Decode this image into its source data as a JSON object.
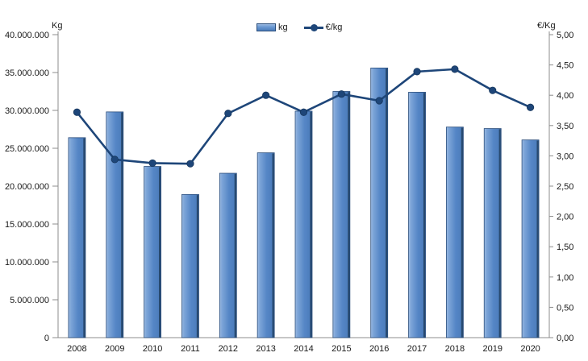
{
  "chart_data": {
    "type": "combo-bar-line",
    "title": "",
    "categories": [
      "2008",
      "2009",
      "2010",
      "2011",
      "2012",
      "2013",
      "2014",
      "2015",
      "2016",
      "2017",
      "2018",
      "2019",
      "2020"
    ],
    "series": [
      {
        "name": "kg",
        "type": "bar",
        "axis": "left",
        "values": [
          26400000,
          29800000,
          22600000,
          18900000,
          21700000,
          24400000,
          29900000,
          32500000,
          35600000,
          32400000,
          27800000,
          27600000,
          26100000
        ]
      },
      {
        "name": "€/kg",
        "type": "line",
        "axis": "right",
        "values": [
          3.72,
          2.94,
          2.88,
          2.87,
          3.7,
          4.0,
          3.72,
          4.02,
          3.91,
          4.39,
          4.43,
          4.08,
          3.8
        ]
      }
    ],
    "left_axis": {
      "title": "Kg",
      "min": 0,
      "max": 40000000,
      "step": 5000000,
      "tick_labels": [
        "0",
        "5.000.000",
        "10.000.000",
        "15.000.000",
        "20.000.000",
        "25.000.000",
        "30.000.000",
        "35.000.000",
        "40.000.000"
      ]
    },
    "right_axis": {
      "title": "€/Kg",
      "min": 0,
      "max": 5,
      "step": 0.5,
      "tick_labels": [
        "0,00",
        "0,50",
        "1,00",
        "1,50",
        "2,00",
        "2,50",
        "3,00",
        "3,50",
        "4,00",
        "4,50",
        "5,00"
      ]
    },
    "legend": {
      "position": "top",
      "items": [
        {
          "label": "kg"
        },
        {
          "label": "€/kg"
        }
      ]
    },
    "grid": false,
    "colors": {
      "bar_fill": "#5586C6",
      "bar_fill_light": "#9CBAE1",
      "bar_fill_dark": "#4A7AB8",
      "bar_edge": "#27496F",
      "bar_outline": "#2A4D7B",
      "line": "#1E4679",
      "marker_stroke": "#16365C",
      "axis": "#8C8C8C",
      "text": "#1A1A1A"
    }
  }
}
